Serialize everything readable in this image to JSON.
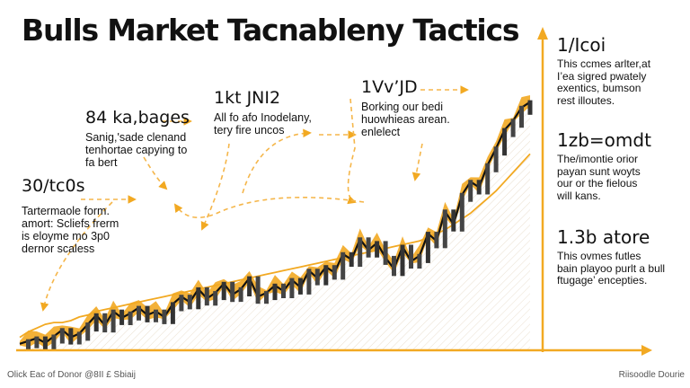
{
  "title": "Bulls Market Tacnableny Tactics",
  "colors": {
    "accent": "#f2a922",
    "line": "#111111",
    "guide": "#f5b64a"
  },
  "annotations": [
    {
      "heading": "84 ka,bages",
      "body": [
        "Sanig,'sade clenand",
        "tenhortae capying to",
        "fa bert"
      ]
    },
    {
      "heading": "1kt JNI2",
      "body": [
        "All fo afo Inodelany,",
        "tery fire uncos"
      ]
    },
    {
      "heading": "1Vv’JD",
      "body": [
        "Borking our bedi",
        "huowhieas arean.",
        "enlelect"
      ]
    },
    {
      "heading": "30/tc0s",
      "body": [
        "Tartermaole form.",
        "amort: Scliefs frerm",
        "is eloyme mo 3p0",
        "dernor scaless"
      ]
    }
  ],
  "side_panel": [
    {
      "heading": "1/Icoi",
      "body": [
        "This ccmes arlter,at",
        "I’ea sigred pwately",
        "exentics, bumson",
        "rest illoutes."
      ]
    },
    {
      "heading": "1zb=omdt",
      "body": [
        "The/imontie orior",
        "payan sunt woyts",
        "our or the fielous",
        "will kans."
      ]
    },
    {
      "heading": "1.3b atore",
      "body": [
        "This ovmes futles",
        "bain playoo purlt a bull",
        "ftugage’ encepties."
      ]
    }
  ],
  "footer": {
    "left": "Olick Eac of Donor @8II £ Sbiaij",
    "right": "Riisoodle Dourie"
  },
  "chart_data": {
    "type": "line",
    "title": "Bulls Market Tacnableny Tactics",
    "xlabel": "",
    "ylabel": "",
    "grid": false,
    "x": [
      0,
      1,
      2,
      3,
      4,
      5,
      6,
      7,
      8,
      9,
      10,
      11,
      12,
      13,
      14,
      15,
      16,
      17,
      18,
      19,
      20,
      21,
      22,
      23,
      24,
      25,
      26,
      27,
      28,
      29,
      30,
      31,
      32,
      33,
      34,
      35,
      36,
      37,
      38,
      39,
      40,
      41,
      42,
      43,
      44,
      45,
      46,
      47,
      48,
      49,
      50,
      51,
      52,
      53,
      54,
      55,
      56,
      57,
      58,
      59,
      60
    ],
    "series": [
      {
        "values": [
          7,
          10,
          13,
          8,
          15,
          22,
          14,
          18,
          28,
          38,
          27,
          42,
          35,
          40,
          46,
          38,
          42,
          36,
          50,
          58,
          52,
          66,
          56,
          62,
          72,
          60,
          66,
          78,
          58,
          62,
          70,
          64,
          76,
          68,
          86,
          78,
          90,
          84,
          104,
          98,
          120,
          108,
          116,
          100,
          88,
          112,
          96,
          102,
          126,
          118,
          150,
          136,
          168,
          182,
          176,
          200,
          218,
          238,
          248,
          262,
          268
        ]
      },
      {
        "values": [
          14,
          20,
          24,
          28,
          30,
          30,
          32,
          36,
          38,
          42,
          44,
          46,
          48,
          50,
          52,
          54,
          56,
          58,
          60,
          62,
          64,
          66,
          68,
          70,
          72,
          74,
          76,
          78,
          80,
          82,
          84,
          86,
          88,
          90,
          92,
          94,
          96,
          98,
          100,
          102,
          104,
          106,
          108,
          110,
          112,
          114,
          116,
          118,
          122,
          126,
          130,
          136,
          142,
          148,
          156,
          164,
          172,
          182,
          192,
          202,
          212
        ]
      }
    ],
    "ylim": [
      0,
      320
    ]
  }
}
